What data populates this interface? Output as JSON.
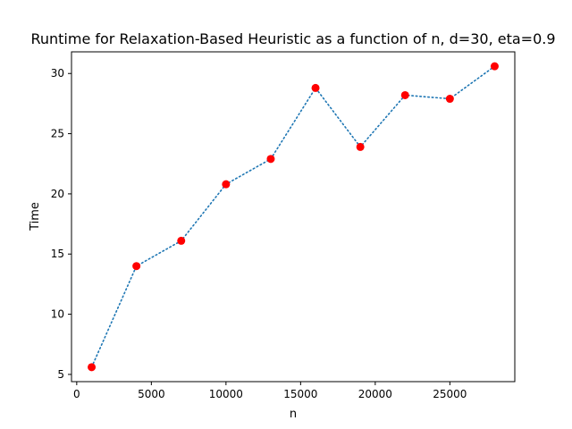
{
  "chart_data": {
    "type": "line",
    "title": "Runtime for Relaxation-Based Heuristic as a function of n, d=30, eta=0.9",
    "xlabel": "n",
    "ylabel": "Time",
    "xlim": [
      -350,
      29350
    ],
    "ylim": [
      4.4,
      31.8
    ],
    "xticks": [
      0,
      5000,
      10000,
      15000,
      20000,
      25000
    ],
    "yticks": [
      5,
      10,
      15,
      20,
      25,
      30
    ],
    "grid": false,
    "series": [
      {
        "line_color": "#1f77b4",
        "line_style": "dotted",
        "marker_color": "#ff0000",
        "x": [
          1000,
          4000,
          7000,
          10000,
          13000,
          16000,
          19000,
          22000,
          25000,
          28000
        ],
        "y": [
          5.6,
          14.0,
          16.1,
          20.8,
          22.9,
          28.8,
          23.9,
          28.2,
          27.9,
          30.6
        ]
      }
    ]
  }
}
